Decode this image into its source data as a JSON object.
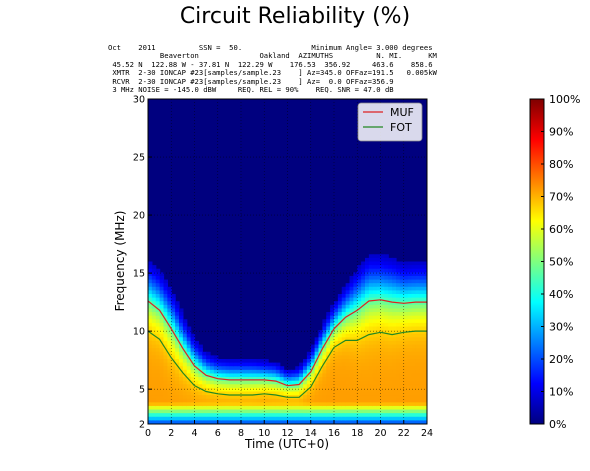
{
  "title": "Circuit Reliability (%)",
  "header_lines": [
    "Oct    2011          SSN =  50.                Minimum Angle= 3.000 degrees",
    "            Beaverton              Oakland  AZIMUTHS          N. MI.      KM",
    " 45.52 N  122.88 W - 37.81 N  122.29 W    176.53  356.92     463.6    858.6",
    " XMTR  2-30 IONCAP #23[samples/sample.23    ] Az=345.0 OFFaz=191.5   0.005kW",
    " RCVR  2-30 IONCAP #23[samples/sample.23    ] Az=  0.0 OFFaz=356.9",
    " 3 MHz NOISE = -145.0 dBW     REQ. REL = 90%    REQ. SNR = 47.0 dB"
  ],
  "chart_data": {
    "type": "heatmap",
    "title": "Circuit Reliability (%)",
    "xlabel": "Time (UTC+0)",
    "ylabel": "Frequency (MHz)",
    "xlim": [
      0,
      24
    ],
    "ylim": [
      2,
      30
    ],
    "x_ticks": [
      0,
      2,
      4,
      6,
      8,
      10,
      12,
      14,
      16,
      18,
      20,
      22,
      24
    ],
    "y_ticks": [
      2,
      5,
      10,
      15,
      20,
      25,
      30
    ],
    "grid": true,
    "legend_position": "top-right",
    "colorbar": {
      "ticks": [
        0,
        10,
        20,
        30,
        40,
        50,
        60,
        70,
        80,
        90,
        100
      ],
      "labels": [
        "0%",
        "10%",
        "20%",
        "30%",
        "40%",
        "50%",
        "60%",
        "70%",
        "80%",
        "90%",
        "100%"
      ]
    },
    "colormap": [
      "#00007f",
      "#0000ff",
      "#007fff",
      "#00ffff",
      "#7fff7f",
      "#ffff00",
      "#ff7f00",
      "#ff0000",
      "#7f0000"
    ],
    "series": [
      {
        "name": "MUF",
        "color": "#dd2222",
        "x": [
          0,
          1,
          2,
          3,
          4,
          5,
          6,
          7,
          8,
          9,
          10,
          11,
          12,
          13,
          14,
          15,
          16,
          17,
          18,
          19,
          20,
          21,
          22,
          23,
          24
        ],
        "y": [
          12.6,
          11.8,
          10.2,
          8.5,
          7.0,
          6.2,
          5.9,
          5.8,
          5.8,
          5.8,
          5.8,
          5.7,
          5.3,
          5.4,
          6.5,
          8.5,
          10.2,
          11.2,
          11.8,
          12.6,
          12.7,
          12.5,
          12.4,
          12.5,
          12.5
        ]
      },
      {
        "name": "FOT",
        "color": "#228822",
        "x": [
          0,
          1,
          2,
          3,
          4,
          5,
          6,
          7,
          8,
          9,
          10,
          11,
          12,
          13,
          14,
          15,
          16,
          17,
          18,
          19,
          20,
          21,
          22,
          23,
          24
        ],
        "y": [
          10.0,
          9.3,
          7.7,
          6.4,
          5.3,
          4.8,
          4.6,
          4.5,
          4.5,
          4.5,
          4.6,
          4.5,
          4.3,
          4.3,
          5.2,
          7.0,
          8.6,
          9.2,
          9.2,
          9.7,
          9.9,
          9.7,
          9.9,
          10.0,
          10.0
        ]
      }
    ]
  }
}
